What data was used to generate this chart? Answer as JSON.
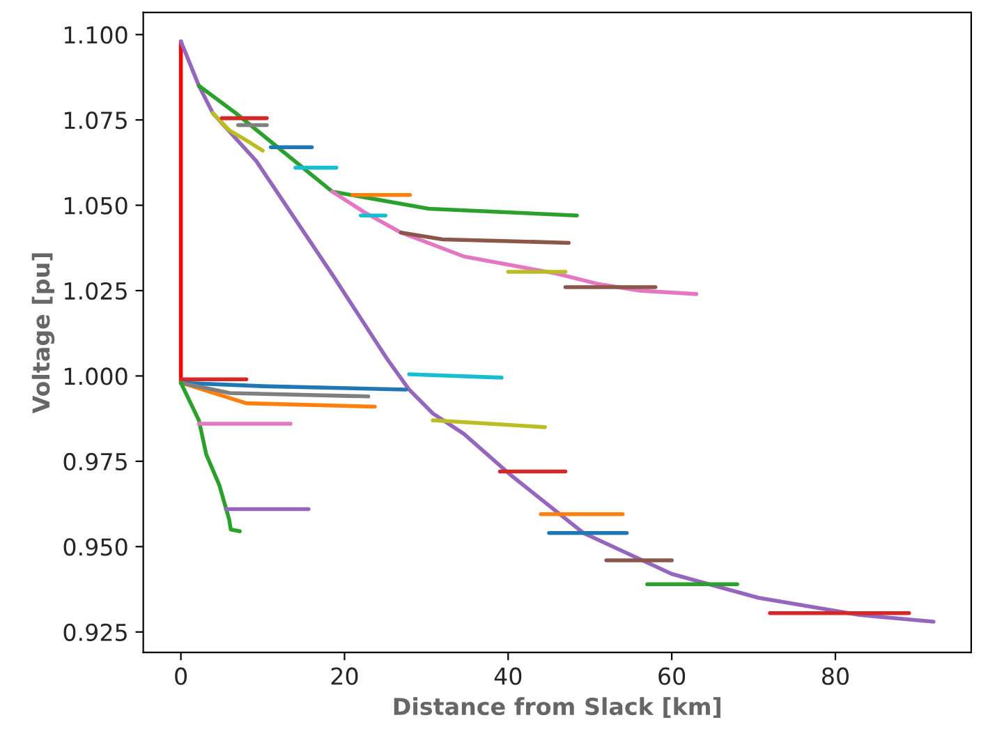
{
  "chart_data": {
    "type": "line",
    "xlabel": "Distance from Slack [km]",
    "ylabel": "Voltage [pu]",
    "xlim": [
      -4.6,
      96.6
    ],
    "ylim": [
      0.919,
      1.1065
    ],
    "xticks": [
      0,
      20,
      40,
      60,
      80
    ],
    "yticks": [
      {
        "value": 0.925,
        "label": "0.925"
      },
      {
        "value": 0.95,
        "label": "0.950"
      },
      {
        "value": 0.975,
        "label": "0.975"
      },
      {
        "value": 1.0,
        "label": "1.000"
      },
      {
        "value": 1.025,
        "label": "1.025"
      },
      {
        "value": 1.05,
        "label": "1.050"
      },
      {
        "value": 1.075,
        "label": "1.075"
      },
      {
        "value": 1.1,
        "label": "1.100"
      }
    ],
    "grid": false,
    "legend": false,
    "series": [
      {
        "color": "#ff0000",
        "x": [
          0,
          0
        ],
        "values": [
          0.998,
          1.098
        ]
      },
      {
        "color": "#9467bd",
        "x": [
          0,
          2.2,
          3.9,
          9.2,
          18.7,
          25.2,
          27.9,
          30.8,
          34.6,
          40.3,
          49.2,
          60,
          70.6,
          82.9,
          92
        ],
        "values": [
          1.098,
          1.085,
          1.077,
          1.063,
          1.029,
          1.005,
          0.996,
          0.989,
          0.983,
          0.971,
          0.954,
          0.942,
          0.935,
          0.93,
          0.928
        ]
      },
      {
        "color": "#2ca02c",
        "x": [
          2.2,
          6.7,
          18.5,
          30.3,
          48.4
        ],
        "values": [
          1.085,
          1.077,
          1.054,
          1.049,
          1.047
        ]
      },
      {
        "color": "#e377c2",
        "x": [
          18.5,
          22.4,
          26.9,
          34.6,
          45.9,
          50.9,
          56,
          63
        ],
        "values": [
          1.054,
          1.048,
          1.042,
          1.035,
          1.03,
          1.027,
          1.025,
          1.024
        ]
      },
      {
        "color": "#8c564b",
        "x": [
          26.9,
          32,
          40,
          47.4
        ],
        "values": [
          1.042,
          1.04,
          1.0395,
          1.039
        ]
      },
      {
        "color": "#bcbd22",
        "x": [
          3.9,
          5.9,
          8,
          10
        ],
        "values": [
          1.077,
          1.072,
          1.069,
          1.066
        ]
      },
      {
        "color": "#d62728",
        "x": [
          5,
          10.5
        ],
        "values": [
          1.0755,
          1.0755
        ]
      },
      {
        "color": "#7f7f7f",
        "x": [
          7,
          10.5
        ],
        "values": [
          1.0735,
          1.0735
        ]
      },
      {
        "color": "#1f77b4",
        "x": [
          11,
          16
        ],
        "values": [
          1.067,
          1.067
        ]
      },
      {
        "color": "#17becf",
        "x": [
          14,
          19
        ],
        "values": [
          1.061,
          1.061
        ]
      },
      {
        "color": "#ff7f0e",
        "x": [
          21,
          28
        ],
        "values": [
          1.053,
          1.053
        ]
      },
      {
        "color": "#17becf",
        "x": [
          22,
          25
        ],
        "values": [
          1.047,
          1.047
        ]
      },
      {
        "color": "#bcbd22",
        "x": [
          40,
          47
        ],
        "values": [
          1.0305,
          1.0305
        ]
      },
      {
        "color": "#8c564b",
        "x": [
          47,
          58
        ],
        "values": [
          1.026,
          1.026
        ]
      },
      {
        "color": "#1f77b4",
        "x": [
          0,
          10,
          27.5
        ],
        "values": [
          0.998,
          0.997,
          0.996
        ]
      },
      {
        "color": "#ff7f0e",
        "x": [
          0,
          8,
          23.7
        ],
        "values": [
          0.998,
          0.992,
          0.991
        ]
      },
      {
        "color": "#d62728",
        "x": [
          0,
          4,
          8
        ],
        "values": [
          0.999,
          0.999,
          0.999
        ]
      },
      {
        "color": "#7f7f7f",
        "x": [
          0,
          6,
          22.9
        ],
        "values": [
          0.998,
          0.995,
          0.994
        ]
      },
      {
        "color": "#2ca02c",
        "x": [
          0,
          2.2,
          3.1,
          4.7,
          5.9,
          6.1,
          7.2
        ],
        "values": [
          0.998,
          0.987,
          0.977,
          0.968,
          0.958,
          0.955,
          0.9545
        ]
      },
      {
        "color": "#e377c2",
        "x": [
          2.2,
          13.4
        ],
        "values": [
          0.986,
          0.986
        ]
      },
      {
        "color": "#9467bd",
        "x": [
          5.5,
          15.6
        ],
        "values": [
          0.961,
          0.961
        ]
      },
      {
        "color": "#17becf",
        "x": [
          27.9,
          39.2
        ],
        "values": [
          1.0005,
          0.9995
        ]
      },
      {
        "color": "#bcbd22",
        "x": [
          30.8,
          44.5
        ],
        "values": [
          0.987,
          0.985
        ]
      },
      {
        "color": "#d62728",
        "x": [
          39,
          47
        ],
        "values": [
          0.972,
          0.972
        ]
      },
      {
        "color": "#ff7f0e",
        "x": [
          44,
          54
        ],
        "values": [
          0.9595,
          0.9595
        ]
      },
      {
        "color": "#1f77b4",
        "x": [
          45,
          54.5
        ],
        "values": [
          0.954,
          0.954
        ]
      },
      {
        "color": "#8c564b",
        "x": [
          52,
          60
        ],
        "values": [
          0.946,
          0.946
        ]
      },
      {
        "color": "#2ca02c",
        "x": [
          57,
          68
        ],
        "values": [
          0.939,
          0.939
        ]
      },
      {
        "color": "#d62728",
        "x": [
          72,
          89
        ],
        "values": [
          0.9305,
          0.9305
        ]
      }
    ]
  }
}
